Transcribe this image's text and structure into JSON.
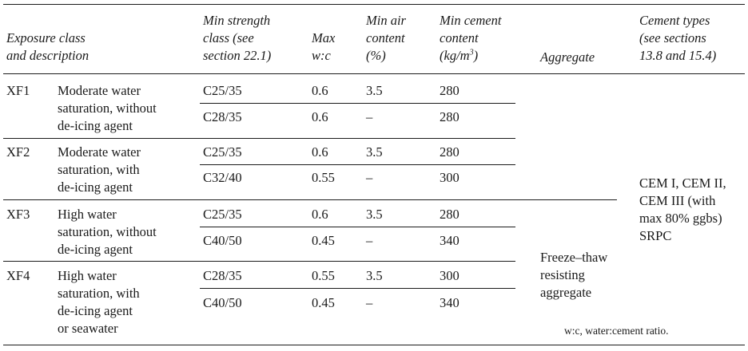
{
  "headers": {
    "exposure": [
      "Exposure class",
      "and description"
    ],
    "strength": [
      "Min strength",
      "class (see",
      "section 22.1)"
    ],
    "wc": [
      "Max",
      "w:c"
    ],
    "air": [
      "Min air",
      "content",
      "(%)"
    ],
    "cement": [
      "Min cement",
      "content",
      "(kg/m",
      "3",
      ")"
    ],
    "aggregate": "Aggregate",
    "types": [
      "Cement types",
      "(see sections",
      "13.8 and 15.4)"
    ]
  },
  "classes": [
    {
      "code": "XF1",
      "desc": [
        "Moderate water",
        "saturation, without",
        "de-icing agent"
      ],
      "rows": [
        {
          "strength": "C25/35",
          "wc": "0.6",
          "air": "3.5",
          "cement": "280"
        },
        {
          "strength": "C28/35",
          "wc": "0.6",
          "air": "–",
          "cement": "280"
        }
      ]
    },
    {
      "code": "XF2",
      "desc": [
        "Moderate water",
        "saturation, with",
        "de-icing agent"
      ],
      "rows": [
        {
          "strength": "C25/35",
          "wc": "0.6",
          "air": "3.5",
          "cement": "280"
        },
        {
          "strength": "C32/40",
          "wc": "0.55",
          "air": "–",
          "cement": "300"
        }
      ]
    },
    {
      "code": "XF3",
      "desc": [
        "High water",
        "saturation, without",
        "de-icing agent"
      ],
      "rows": [
        {
          "strength": "C25/35",
          "wc": "0.6",
          "air": "3.5",
          "cement": "280"
        },
        {
          "strength": "C40/50",
          "wc": "0.45",
          "air": "–",
          "cement": "340"
        }
      ]
    },
    {
      "code": "XF4",
      "desc": [
        "High water",
        "saturation, with",
        "de-icing agent",
        "or seawater"
      ],
      "rows": [
        {
          "strength": "C28/35",
          "wc": "0.55",
          "air": "3.5",
          "cement": "300"
        },
        {
          "strength": "C40/50",
          "wc": "0.45",
          "air": "–",
          "cement": "340"
        }
      ]
    }
  ],
  "aggregate_value": [
    "Freeze–thaw",
    "resisting",
    "aggregate"
  ],
  "cement_types_value": [
    "CEM I, CEM II,",
    "CEM III (with",
    "max 80% ggbs)",
    "SRPC"
  ],
  "footnote": "w:c, water:cement ratio."
}
